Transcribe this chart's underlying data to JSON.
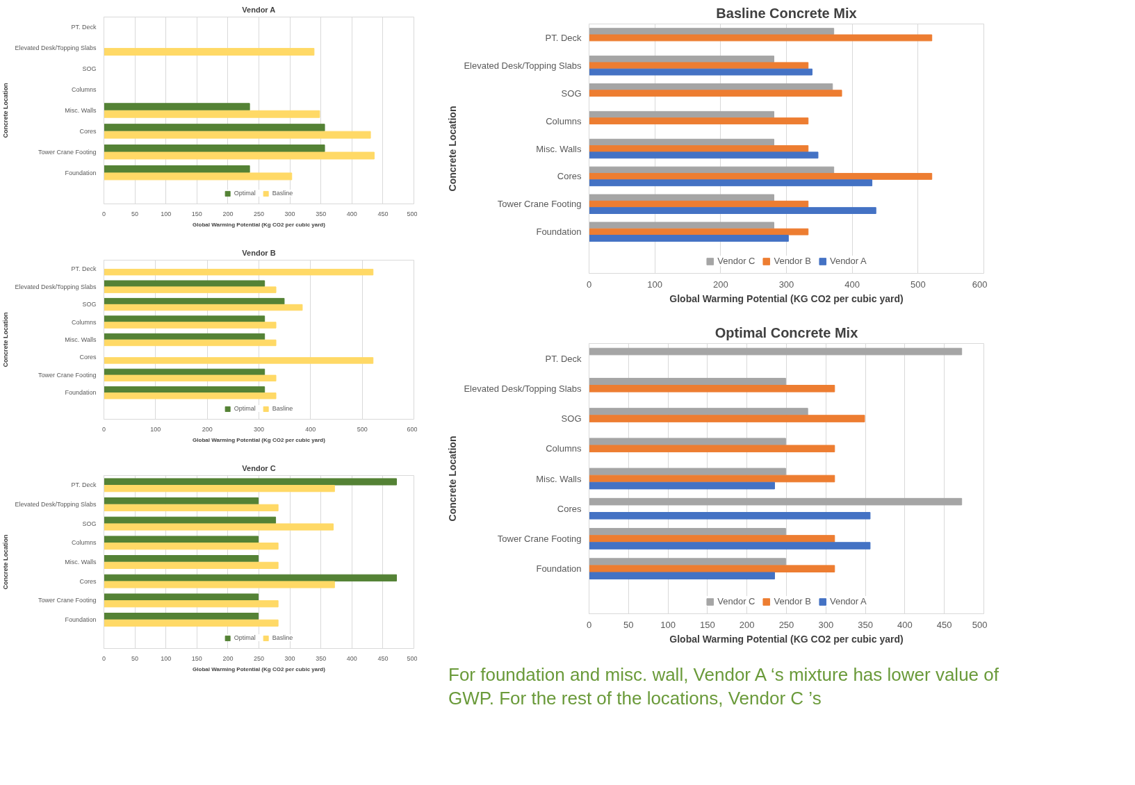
{
  "chart_data": [
    {
      "type": "bar",
      "orientation": "horizontal",
      "title": "Vendor A",
      "xlabel": "Global Warming Potential (Kg CO2 per cubic yard)",
      "ylabel": "Concrete Location",
      "categories": [
        "PT. Deck",
        "Elevated Desk/Topping Slabs",
        "SOG",
        "Columns",
        "Misc. Walls",
        "Cores",
        "Tower Crane Footing",
        "Foundation"
      ],
      "series": [
        {
          "name": "Optimal",
          "color": "#548235",
          "values": [
            null,
            null,
            null,
            null,
            235,
            356,
            356,
            235
          ]
        },
        {
          "name": "Basline",
          "color": "#ffd966",
          "values": [
            null,
            339,
            null,
            null,
            348,
            430,
            436,
            303
          ]
        }
      ],
      "xlim": [
        0,
        500
      ],
      "xticks": [
        0,
        50,
        100,
        150,
        200,
        250,
        300,
        350,
        400,
        450,
        500
      ],
      "grid": "x",
      "legend": "bottom"
    },
    {
      "type": "bar",
      "orientation": "horizontal",
      "title": "Vendor B",
      "xlabel": "Global Warming Potential (Kg CO2 per cubic yard)",
      "ylabel": "Concrete Location",
      "categories": [
        "PT. Deck",
        "Elevated Desk/Topping Slabs",
        "SOG",
        "Columns",
        "Misc. Walls",
        "Cores",
        "Tower Crane Footing",
        "Foundation"
      ],
      "series": [
        {
          "name": "Optimal",
          "color": "#548235",
          "values": [
            null,
            311,
            349,
            311,
            311,
            null,
            311,
            311
          ]
        },
        {
          "name": "Basline",
          "color": "#ffd966",
          "values": [
            521,
            333,
            384,
            333,
            333,
            521,
            333,
            333
          ]
        }
      ],
      "xlim": [
        0,
        600
      ],
      "xticks": [
        0,
        100,
        200,
        300,
        400,
        500,
        600
      ],
      "grid": "x",
      "legend": "bottom"
    },
    {
      "type": "bar",
      "orientation": "horizontal",
      "title": "Vendor C",
      "xlabel": "Global Warming Potential (Kg CO2 per cubic yard)",
      "ylabel": "Concrete Location",
      "categories": [
        "PT. Deck",
        "Elevated Desk/Topping Slabs",
        "SOG",
        "Columns",
        "Misc. Walls",
        "Cores",
        "Tower Crane Footing",
        "Foundation"
      ],
      "series": [
        {
          "name": "Optimal",
          "color": "#548235",
          "values": [
            472,
            249,
            277,
            249,
            249,
            472,
            249,
            249
          ]
        },
        {
          "name": "Basline",
          "color": "#ffd966",
          "values": [
            372,
            281,
            370,
            281,
            281,
            372,
            281,
            281
          ]
        }
      ],
      "xlim": [
        0,
        500
      ],
      "xticks": [
        0,
        50,
        100,
        150,
        200,
        250,
        300,
        350,
        400,
        450,
        500
      ],
      "grid": "x",
      "legend": "bottom"
    },
    {
      "type": "bar",
      "orientation": "horizontal",
      "title": "Basline Concrete Mix",
      "xlabel": "Global Warming Potential (KG CO2 per cubic yard)",
      "ylabel": "Concrete Location",
      "categories": [
        "PT. Deck",
        "Elevated Desk/Topping Slabs",
        "SOG",
        "Columns",
        "Misc. Walls",
        "Cores",
        "Tower Crane Footing",
        "Foundation"
      ],
      "series": [
        {
          "name": "Vendor C",
          "color": "#a5a5a5",
          "values": [
            372,
            281,
            370,
            281,
            281,
            372,
            281,
            281
          ]
        },
        {
          "name": "Vendor B",
          "color": "#ed7d31",
          "values": [
            521,
            333,
            384,
            333,
            333,
            521,
            333,
            333
          ]
        },
        {
          "name": "Vendor A",
          "color": "#4472c4",
          "values": [
            null,
            339,
            null,
            null,
            348,
            430,
            436,
            303
          ]
        }
      ],
      "xlim": [
        0,
        600
      ],
      "xticks": [
        0,
        100,
        200,
        300,
        400,
        500,
        600
      ],
      "grid": "x",
      "legend": "bottom"
    },
    {
      "type": "bar",
      "orientation": "horizontal",
      "title": "Optimal Concrete Mix",
      "xlabel": "Global Warming Potential (KG CO2 per cubic yard)",
      "ylabel": "Concrete Location",
      "categories": [
        "PT. Deck",
        "Elevated Desk/Topping Slabs",
        "SOG",
        "Columns",
        "Misc. Walls",
        "Cores",
        "Tower Crane Footing",
        "Foundation"
      ],
      "series": [
        {
          "name": "Vendor C",
          "color": "#a5a5a5",
          "values": [
            472,
            249,
            277,
            249,
            249,
            472,
            249,
            249
          ]
        },
        {
          "name": "Vendor B",
          "color": "#ed7d31",
          "values": [
            null,
            311,
            349,
            311,
            311,
            null,
            311,
            311
          ]
        },
        {
          "name": "Vendor A",
          "color": "#4472c4",
          "values": [
            null,
            null,
            null,
            null,
            235,
            356,
            356,
            235
          ]
        }
      ],
      "xlim": [
        0,
        500
      ],
      "xticks": [
        0,
        50,
        100,
        150,
        200,
        250,
        300,
        350,
        400,
        450,
        500
      ],
      "grid": "x",
      "legend": "bottom",
      "annotations": [
        "For foundation and misc. wall, Vendor A ‘s mixture has lower value of GWP. For the rest of the locations, Vendor C ’s"
      ]
    }
  ]
}
